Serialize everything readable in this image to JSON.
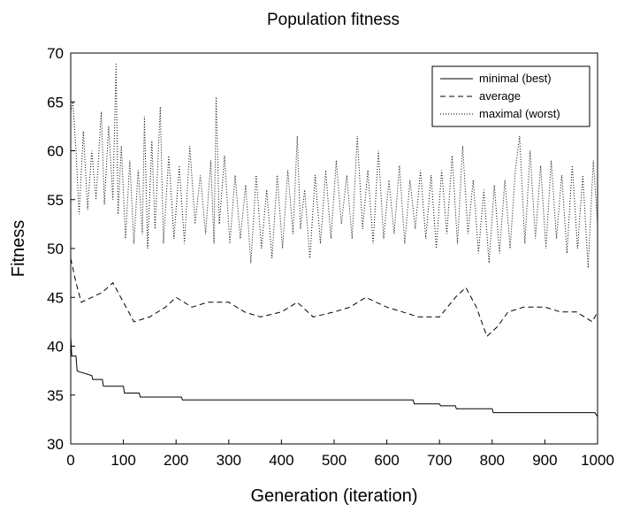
{
  "chart_data": {
    "type": "line",
    "title": "Population fitness",
    "xlabel": "Generation (iteration)",
    "ylabel": "Fitness",
    "xlim": [
      0,
      1000
    ],
    "ylim": [
      30,
      70
    ],
    "xticks": [
      0,
      100,
      200,
      300,
      400,
      500,
      600,
      700,
      800,
      900,
      1000
    ],
    "yticks": [
      30,
      35,
      40,
      45,
      50,
      55,
      60,
      65,
      70
    ],
    "grid": false,
    "legend_position": "top-right",
    "series": [
      {
        "name": "minimal (best)",
        "style": "solid",
        "color": "#000000",
        "x": [
          0,
          2,
          4,
          10,
          12,
          15,
          40,
          42,
          60,
          62,
          100,
          102,
          130,
          132,
          210,
          212,
          650,
          652,
          700,
          702,
          730,
          732,
          800,
          802,
          995,
          1000
        ],
        "y": [
          41.0,
          39.0,
          39.0,
          39.0,
          37.5,
          37.4,
          37.0,
          36.6,
          36.6,
          35.9,
          35.9,
          35.2,
          35.2,
          34.8,
          34.8,
          34.5,
          34.5,
          34.1,
          34.1,
          33.9,
          33.9,
          33.6,
          33.6,
          33.2,
          33.2,
          32.8
        ]
      },
      {
        "name": "average",
        "style": "dashed",
        "color": "#000000",
        "x": [
          0,
          10,
          20,
          40,
          60,
          80,
          100,
          120,
          150,
          180,
          200,
          230,
          260,
          300,
          330,
          360,
          400,
          430,
          460,
          500,
          530,
          560,
          600,
          630,
          660,
          700,
          730,
          750,
          770,
          790,
          810,
          830,
          860,
          900,
          930,
          960,
          990,
          1000
        ],
        "y": [
          49.0,
          46.5,
          44.5,
          45.0,
          45.5,
          46.5,
          44.5,
          42.5,
          43.0,
          44.0,
          45.0,
          44.0,
          44.5,
          44.5,
          43.5,
          43.0,
          43.5,
          44.5,
          43.0,
          43.5,
          44.0,
          45.0,
          44.0,
          43.5,
          43.0,
          43.0,
          45.0,
          46.0,
          44.0,
          41.0,
          42.0,
          43.5,
          44.0,
          44.0,
          43.5,
          43.5,
          42.5,
          43.5
        ]
      },
      {
        "name": "maximal (worst)",
        "style": "dotted",
        "color": "#000000",
        "x": [
          0,
          4,
          10,
          16,
          24,
          32,
          40,
          48,
          58,
          64,
          72,
          80,
          86,
          90,
          96,
          104,
          112,
          120,
          128,
          136,
          140,
          146,
          154,
          160,
          170,
          176,
          186,
          196,
          206,
          216,
          226,
          236,
          246,
          256,
          266,
          272,
          276,
          282,
          292,
          302,
          312,
          322,
          332,
          342,
          352,
          362,
          372,
          382,
          392,
          402,
          412,
          422,
          430,
          436,
          444,
          454,
          464,
          474,
          484,
          494,
          504,
          514,
          524,
          534,
          544,
          554,
          564,
          574,
          584,
          594,
          604,
          614,
          624,
          634,
          644,
          654,
          664,
          674,
          684,
          694,
          704,
          714,
          724,
          734,
          744,
          754,
          764,
          774,
          784,
          794,
          804,
          814,
          824,
          834,
          844,
          852,
          862,
          872,
          882,
          892,
          902,
          912,
          922,
          932,
          942,
          952,
          962,
          972,
          982,
          992,
          1000
        ],
        "y": [
          64.0,
          65.0,
          60.0,
          53.5,
          62.0,
          54.0,
          60.0,
          55.0,
          64.0,
          54.5,
          62.5,
          55.0,
          69.0,
          53.5,
          60.5,
          51.0,
          59.0,
          50.5,
          58.0,
          51.5,
          63.5,
          50.0,
          61.0,
          52.0,
          64.5,
          50.5,
          59.5,
          51.0,
          58.5,
          50.5,
          60.5,
          52.5,
          57.5,
          51.5,
          59.0,
          50.5,
          65.5,
          52.5,
          59.5,
          50.5,
          57.5,
          51.0,
          56.5,
          48.5,
          57.5,
          50.0,
          56.0,
          49.0,
          57.5,
          50.0,
          58.0,
          51.5,
          61.5,
          52.0,
          56.0,
          49.0,
          57.5,
          50.5,
          58.0,
          51.0,
          59.0,
          52.5,
          57.5,
          51.0,
          61.5,
          52.0,
          58.0,
          50.5,
          60.0,
          51.0,
          57.0,
          51.5,
          58.5,
          50.5,
          57.0,
          52.0,
          58.0,
          51.0,
          57.5,
          50.0,
          58.0,
          51.5,
          59.5,
          50.5,
          60.5,
          51.5,
          57.0,
          49.5,
          56.0,
          48.5,
          56.5,
          49.5,
          57.0,
          50.0,
          58.0,
          61.5,
          50.5,
          60.0,
          51.0,
          58.5,
          50.0,
          59.0,
          51.0,
          57.5,
          49.5,
          58.5,
          50.0,
          57.5,
          48.0,
          59.0,
          52.5
        ]
      }
    ]
  }
}
